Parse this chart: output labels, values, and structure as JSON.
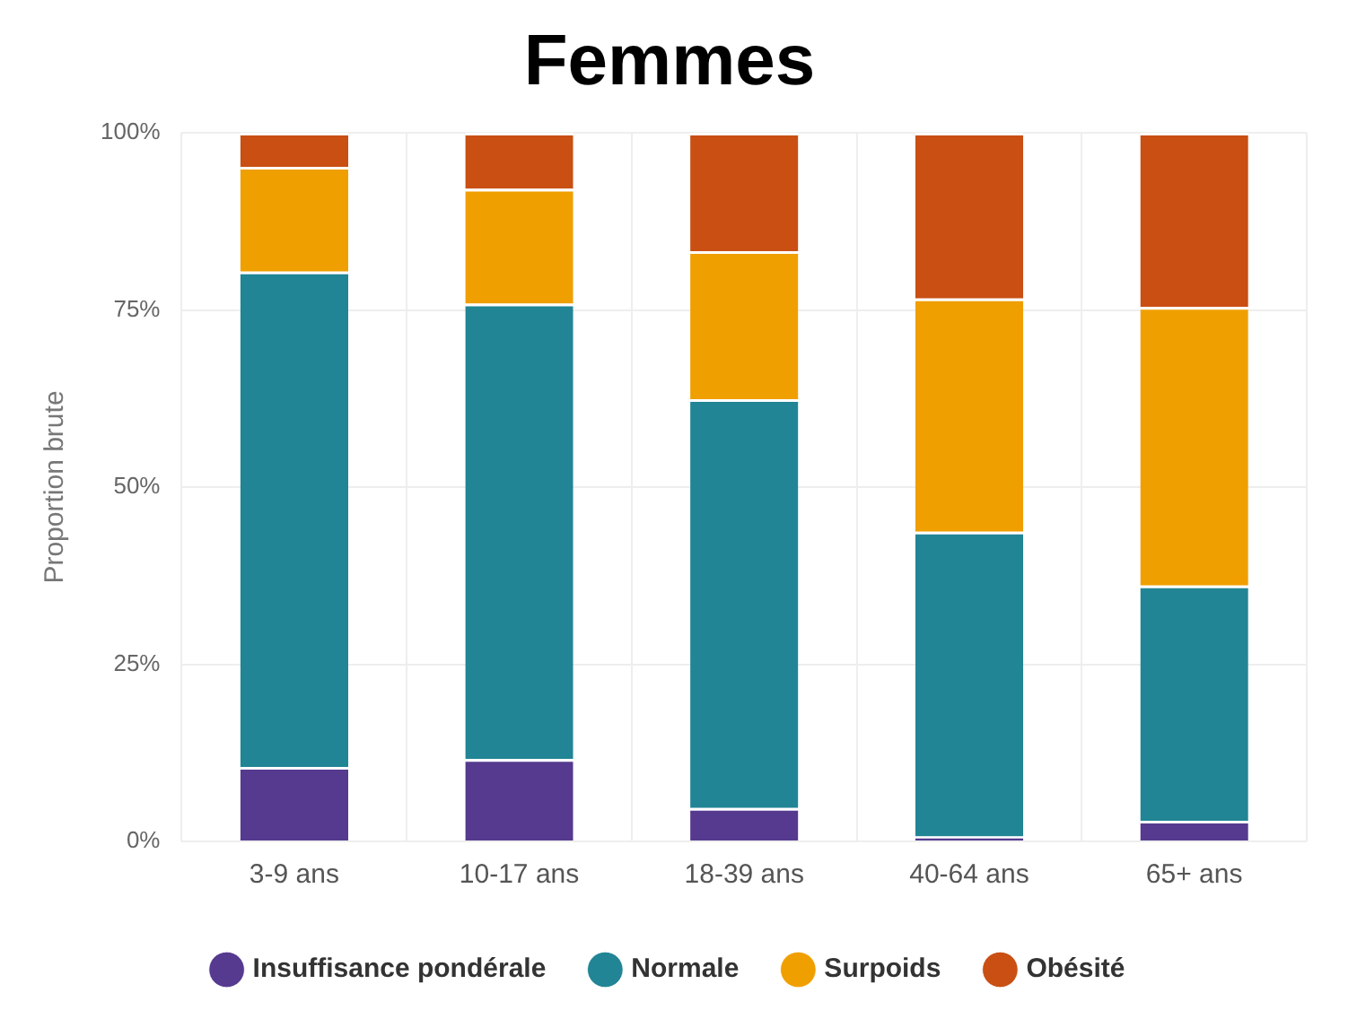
{
  "chart_data": {
    "type": "bar",
    "title": "Femmes",
    "ylabel": "Proportion brute",
    "stacked": true,
    "categories": [
      "3-9 ans",
      "10-17 ans",
      "18-39 ans",
      "40-64 ans",
      "65+ ans"
    ],
    "series": [
      {
        "name": "Insuffisance pondérale",
        "color": "#553a8f",
        "values": [
          10.5,
          11.6,
          4.7,
          0.7,
          2.9
        ]
      },
      {
        "name": "Normale",
        "color": "#218595",
        "values": [
          69.9,
          64.3,
          57.7,
          43.0,
          33.2
        ]
      },
      {
        "name": "Surpoids",
        "color": "#f09f00",
        "values": [
          14.8,
          16.2,
          20.9,
          32.9,
          39.3
        ]
      },
      {
        "name": "Obésité",
        "color": "#c94f13",
        "values": [
          4.8,
          7.9,
          16.7,
          23.4,
          24.6
        ]
      }
    ],
    "ylim": [
      0,
      100
    ],
    "yticks": [
      {
        "value": 0,
        "label": "0%"
      },
      {
        "value": 25,
        "label": "25%"
      },
      {
        "value": 50,
        "label": "50%"
      },
      {
        "value": 75,
        "label": "75%"
      },
      {
        "value": 100,
        "label": "100%"
      }
    ],
    "grid": true,
    "legend": "bottom"
  }
}
